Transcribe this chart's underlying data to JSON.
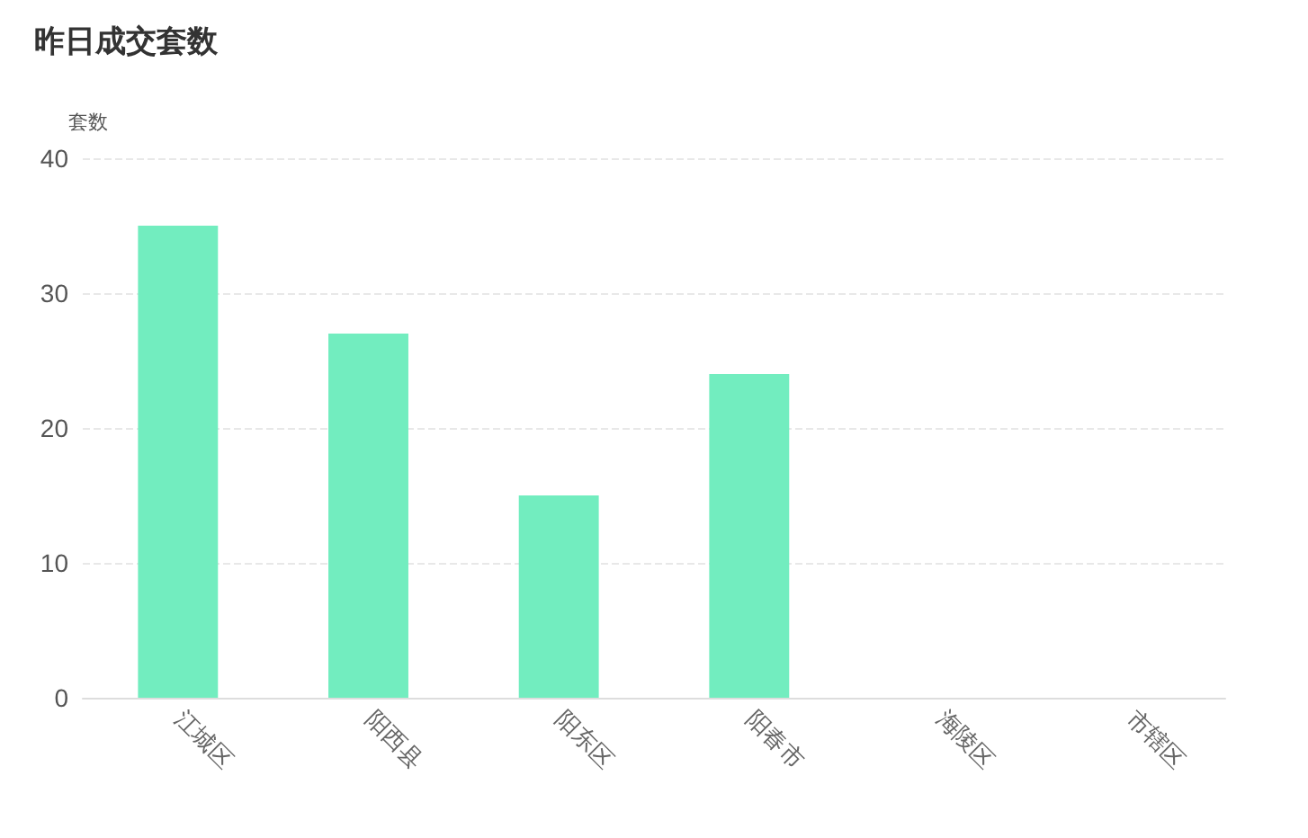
{
  "chart_data": {
    "type": "bar",
    "title": "昨日成交套数",
    "ylabel": "套数",
    "categories": [
      "江城区",
      "阳西县",
      "阳东区",
      "阳春市",
      "海陵区",
      "市辖区"
    ],
    "values": [
      35,
      27,
      15,
      24,
      0,
      0
    ],
    "color": "#72edbf",
    "ylim": [
      0,
      40
    ],
    "yticks": [
      0,
      10,
      20,
      30,
      40
    ],
    "grid": "y"
  }
}
